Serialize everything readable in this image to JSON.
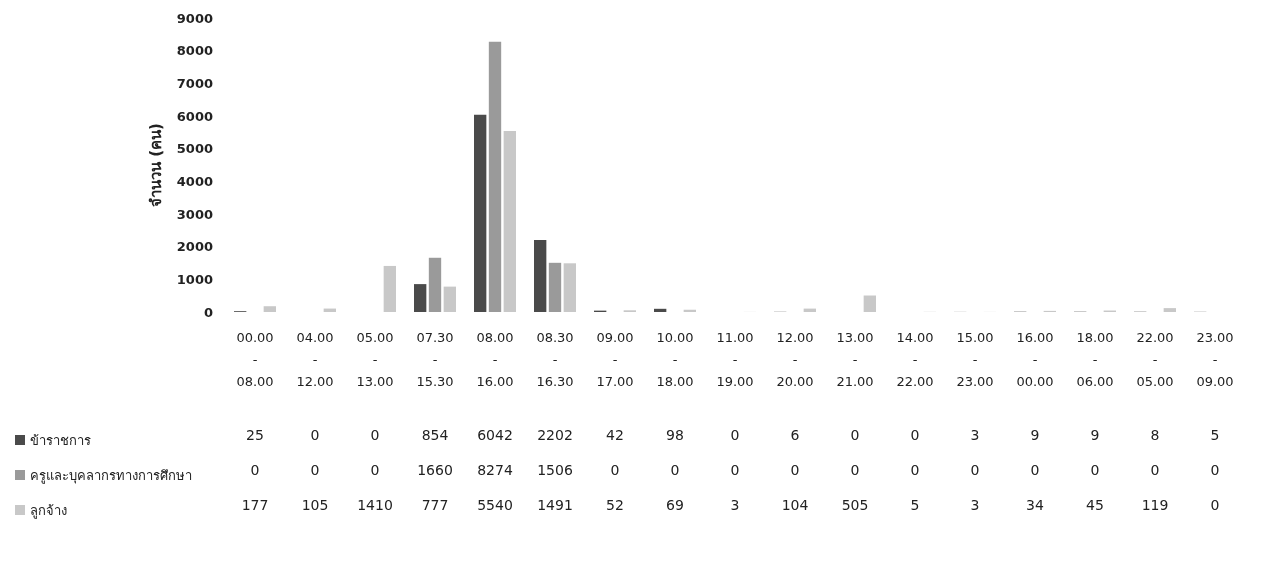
{
  "chart_data": {
    "type": "bar",
    "categories": [
      "00.00 - 08.00",
      "04.00 - 12.00",
      "05.00 - 13.00",
      "07.30 - 15.30",
      "08.00 - 16.00",
      "08.30 - 16.30",
      "09.00 - 17.00",
      "10.00 - 18.00",
      "11.00 - 19.00",
      "12.00 - 20.00",
      "13.00 - 21.00",
      "14.00 - 22.00",
      "15.00 - 23.00",
      "16.00 - 00.00",
      "18.00 - 06.00",
      "22.00 - 05.00",
      "23.00 - 09.00"
    ],
    "series": [
      {
        "name": "ข้าราชการ",
        "color": "#4a4a4a",
        "values": [
          25,
          0,
          0,
          854,
          6042,
          2202,
          42,
          98,
          0,
          6,
          0,
          0,
          3,
          9,
          9,
          8,
          5
        ]
      },
      {
        "name": "ครูและบุคลากรทางการศึกษา",
        "color": "#9a9a9a",
        "values": [
          0,
          0,
          0,
          1660,
          8274,
          1506,
          0,
          0,
          0,
          0,
          0,
          0,
          0,
          0,
          0,
          0,
          0
        ]
      },
      {
        "name": "ลูกจ้าง",
        "color": "#c8c8c8",
        "values": [
          177,
          105,
          1410,
          777,
          5540,
          1491,
          52,
          69,
          3,
          104,
          505,
          5,
          3,
          34,
          45,
          119,
          0
        ]
      }
    ],
    "ylabel": "จำนวน (คน)",
    "ylim": [
      0,
      9000
    ],
    "yticks": [
      0,
      1000,
      2000,
      3000,
      4000,
      5000,
      6000,
      7000,
      8000,
      9000
    ],
    "grid": false,
    "legend": "bottom left",
    "data_labels": true
  }
}
